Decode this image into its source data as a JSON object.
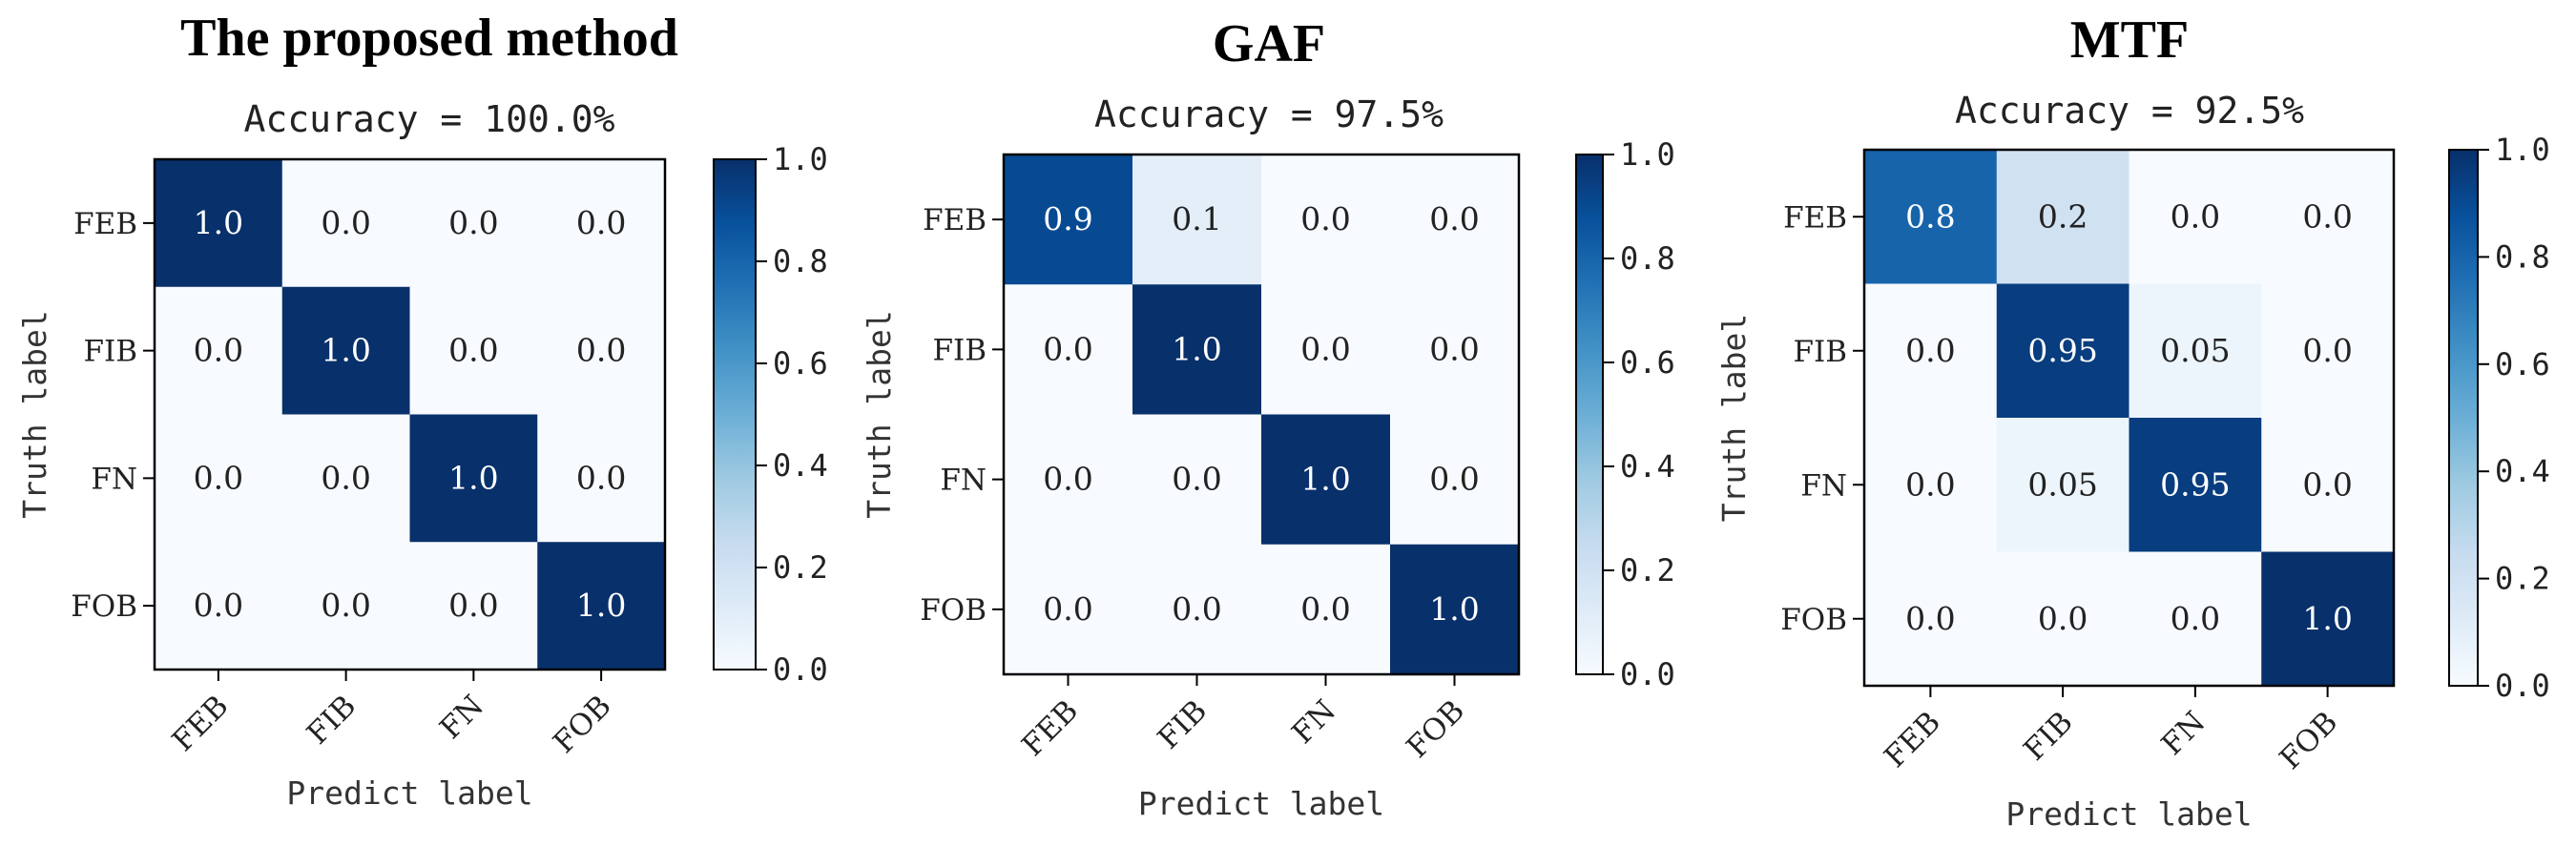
{
  "chart_data": [
    {
      "type": "heatmap",
      "title": "The proposed method",
      "subtitle": "Accuracy = 100.0%",
      "xlabel": "Predict label",
      "ylabel": "Truth label",
      "x_categories": [
        "FEB",
        "FIB",
        "FN",
        "FOB"
      ],
      "y_categories": [
        "FEB",
        "FIB",
        "FN",
        "FOB"
      ],
      "values": [
        [
          1.0,
          0.0,
          0.0,
          0.0
        ],
        [
          0.0,
          1.0,
          0.0,
          0.0
        ],
        [
          0.0,
          0.0,
          1.0,
          0.0
        ],
        [
          0.0,
          0.0,
          0.0,
          1.0
        ]
      ],
      "labels": [
        [
          "1.0",
          "0.0",
          "0.0",
          "0.0"
        ],
        [
          "0.0",
          "1.0",
          "0.0",
          "0.0"
        ],
        [
          "0.0",
          "0.0",
          "1.0",
          "0.0"
        ],
        [
          "0.0",
          "0.0",
          "0.0",
          "1.0"
        ]
      ],
      "colorbar": {
        "range": [
          0,
          1
        ],
        "ticks": [
          "0.0",
          "0.2",
          "0.4",
          "0.6",
          "0.8",
          "1.0"
        ]
      },
      "colormap": "Blues"
    },
    {
      "type": "heatmap",
      "title": "GAF",
      "subtitle": "Accuracy = 97.5%",
      "xlabel": "Predict label",
      "ylabel": "Truth label",
      "x_categories": [
        "FEB",
        "FIB",
        "FN",
        "FOB"
      ],
      "y_categories": [
        "FEB",
        "FIB",
        "FN",
        "FOB"
      ],
      "values": [
        [
          0.9,
          0.1,
          0.0,
          0.0
        ],
        [
          0.0,
          1.0,
          0.0,
          0.0
        ],
        [
          0.0,
          0.0,
          1.0,
          0.0
        ],
        [
          0.0,
          0.0,
          0.0,
          1.0
        ]
      ],
      "labels": [
        [
          "0.9",
          "0.1",
          "0.0",
          "0.0"
        ],
        [
          "0.0",
          "1.0",
          "0.0",
          "0.0"
        ],
        [
          "0.0",
          "0.0",
          "1.0",
          "0.0"
        ],
        [
          "0.0",
          "0.0",
          "0.0",
          "1.0"
        ]
      ],
      "colorbar": {
        "range": [
          0,
          1
        ],
        "ticks": [
          "0.0",
          "0.2",
          "0.4",
          "0.6",
          "0.8",
          "1.0"
        ]
      },
      "colormap": "Blues"
    },
    {
      "type": "heatmap",
      "title": "MTF",
      "subtitle": "Accuracy = 92.5%",
      "xlabel": "Predict label",
      "ylabel": "Truth label",
      "x_categories": [
        "FEB",
        "FIB",
        "FN",
        "FOB"
      ],
      "y_categories": [
        "FEB",
        "FIB",
        "FN",
        "FOB"
      ],
      "values": [
        [
          0.8,
          0.2,
          0.0,
          0.0
        ],
        [
          0.0,
          0.95,
          0.05,
          0.0
        ],
        [
          0.0,
          0.05,
          0.95,
          0.0
        ],
        [
          0.0,
          0.0,
          0.0,
          1.0
        ]
      ],
      "labels": [
        [
          "0.8",
          "0.2",
          "0.0",
          "0.0"
        ],
        [
          "0.0",
          "0.95",
          "0.05",
          "0.0"
        ],
        [
          "0.0",
          "0.05",
          "0.95",
          "0.0"
        ],
        [
          "0.0",
          "0.0",
          "0.0",
          "1.0"
        ]
      ],
      "colorbar": {
        "range": [
          0,
          1
        ],
        "ticks": [
          "0.0",
          "0.2",
          "0.4",
          "0.6",
          "0.8",
          "1.0"
        ]
      },
      "colormap": "Blues"
    }
  ]
}
